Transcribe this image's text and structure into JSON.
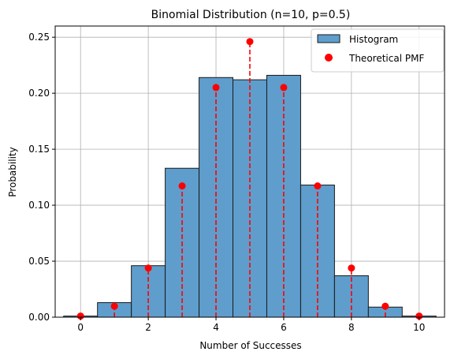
{
  "chart_data": {
    "type": "bar",
    "title": "Binomial Distribution (n=10, p=0.5)",
    "xlabel": "Number of Successes",
    "ylabel": "Probability",
    "xlim": [
      -0.75,
      10.75
    ],
    "ylim": [
      0,
      0.26
    ],
    "xticks": [
      0,
      2,
      4,
      6,
      8,
      10
    ],
    "yticks": [
      "0.00",
      "0.05",
      "0.10",
      "0.15",
      "0.20",
      "0.25"
    ],
    "grid": true,
    "legend_position": "top-right",
    "categories": [
      0,
      1,
      2,
      3,
      4,
      5,
      6,
      7,
      8,
      9,
      10
    ],
    "series": [
      {
        "name": "Histogram",
        "kind": "bar",
        "color": "#5f9dcc",
        "edge_color": "#1a1a1a",
        "values": [
          0.001,
          0.013,
          0.046,
          0.133,
          0.214,
          0.212,
          0.216,
          0.118,
          0.037,
          0.009,
          0.001
        ]
      },
      {
        "name": "Theoretical PMF",
        "kind": "stem",
        "color": "#ff0000",
        "values": [
          0.001,
          0.0098,
          0.0439,
          0.1172,
          0.2051,
          0.2461,
          0.2051,
          0.1172,
          0.0439,
          0.0098,
          0.001
        ]
      }
    ]
  }
}
